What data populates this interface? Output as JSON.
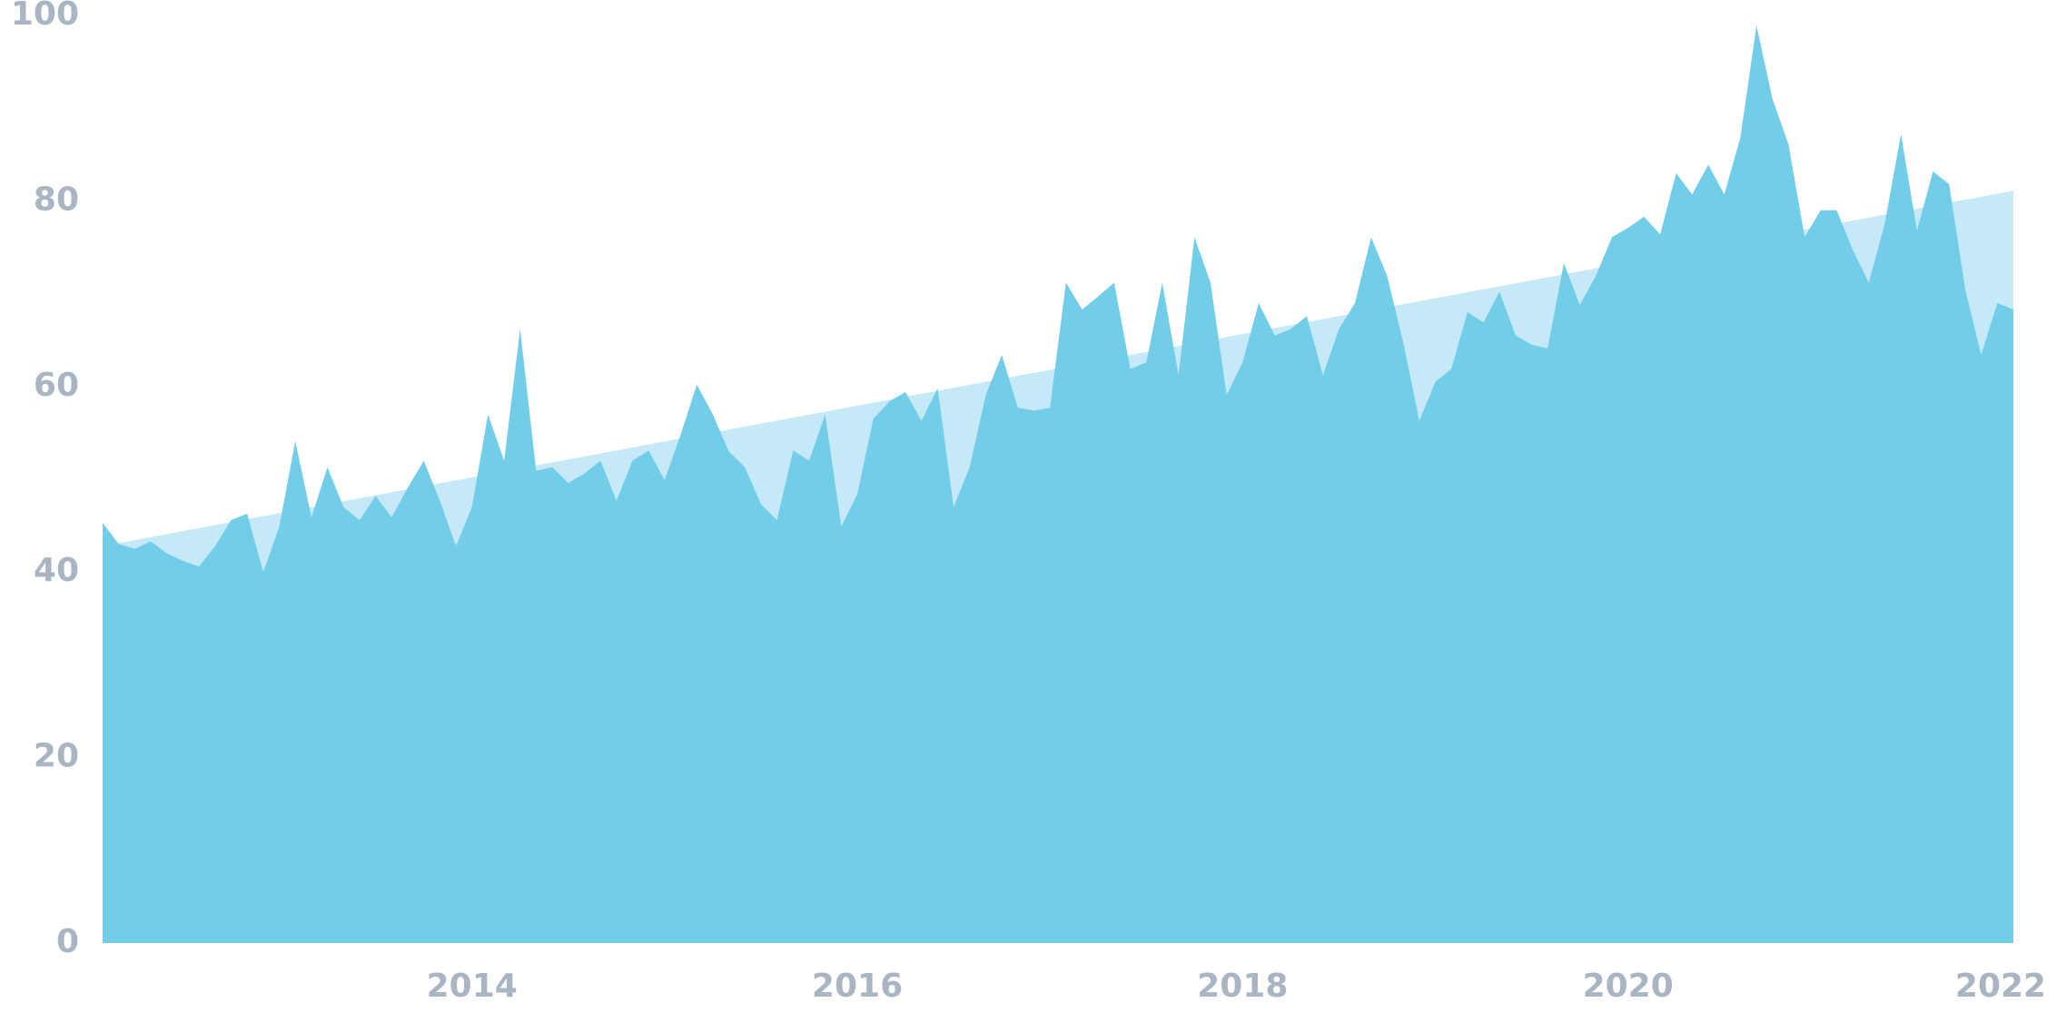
{
  "chart_data": {
    "type": "area",
    "xlim": [
      2012.083,
      2022.0
    ],
    "xticks": [
      2014,
      2016,
      2018,
      2020,
      2022
    ],
    "ylim": [
      0,
      100
    ],
    "yticks": [
      0,
      20,
      40,
      60,
      80,
      100
    ],
    "series": [
      {
        "color": "#c6e9f7",
        "x": [
          2012.083,
          2022.0
        ],
        "values": [
          42.8,
          81.1
        ]
      },
      {
        "color": "#72cde9",
        "x": [
          2012.083,
          2012.167,
          2012.25,
          2012.333,
          2012.417,
          2012.5,
          2012.583,
          2012.667,
          2012.75,
          2012.833,
          2012.917,
          2013.0,
          2013.083,
          2013.167,
          2013.25,
          2013.333,
          2013.417,
          2013.5,
          2013.583,
          2013.667,
          2013.75,
          2013.833,
          2013.917,
          2014.0,
          2014.083,
          2014.167,
          2014.25,
          2014.333,
          2014.417,
          2014.5,
          2014.583,
          2014.667,
          2014.75,
          2014.833,
          2014.917,
          2015.0,
          2015.083,
          2015.167,
          2015.25,
          2015.333,
          2015.417,
          2015.5,
          2015.583,
          2015.667,
          2015.75,
          2015.833,
          2015.917,
          2016.0,
          2016.083,
          2016.167,
          2016.25,
          2016.333,
          2016.417,
          2016.5,
          2016.583,
          2016.667,
          2016.75,
          2016.833,
          2016.917,
          2017.0,
          2017.083,
          2017.167,
          2017.25,
          2017.333,
          2017.417,
          2017.5,
          2017.583,
          2017.667,
          2017.75,
          2017.833,
          2017.917,
          2018.0,
          2018.083,
          2018.167,
          2018.25,
          2018.333,
          2018.417,
          2018.5,
          2018.583,
          2018.667,
          2018.75,
          2018.833,
          2018.917,
          2019.0,
          2019.083,
          2019.167,
          2019.25,
          2019.333,
          2019.417,
          2019.5,
          2019.583,
          2019.667,
          2019.75,
          2019.833,
          2019.917,
          2020.0,
          2020.083,
          2020.167,
          2020.25,
          2020.333,
          2020.417,
          2020.5,
          2020.583,
          2020.667,
          2020.75,
          2020.833,
          2020.917,
          2021.0,
          2021.083,
          2021.167,
          2021.25,
          2021.333,
          2021.417,
          2021.5,
          2021.583,
          2021.667,
          2021.75,
          2021.833,
          2021.917,
          2022.0
        ],
        "values": [
          45.3,
          43,
          42.5,
          43.3,
          42,
          41.2,
          40.6,
          42.8,
          45.6,
          46.3,
          40,
          44.9,
          54.1,
          45.9,
          51.3,
          47,
          45.6,
          48.2,
          45.9,
          49.1,
          52,
          47.7,
          42.8,
          47,
          57,
          52,
          66.2,
          50.9,
          51.3,
          49.6,
          50.6,
          52,
          47.7,
          52,
          53.1,
          49.9,
          54.8,
          60.2,
          57,
          53,
          51.3,
          47.3,
          45.6,
          53.1,
          52,
          57,
          44.9,
          48.4,
          56.5,
          58.4,
          59.4,
          56.3,
          59.8,
          47,
          51.3,
          59.1,
          63.4,
          57.7,
          57.4,
          57.7,
          71.2,
          68.3,
          69.7,
          71.2,
          61.9,
          62.6,
          71.2,
          61.2,
          76.1,
          71.2,
          59.1,
          62.6,
          69,
          65.5,
          66.2,
          67.6,
          61.2,
          66.2,
          69,
          76.1,
          71.9,
          64.8,
          56.3,
          60.5,
          61.9,
          68,
          66.9,
          70.2,
          65.5,
          64.5,
          64.1,
          73.3,
          68.8,
          71.9,
          76.1,
          77.1,
          78.3,
          76.4,
          83,
          80.7,
          83.9,
          80.7,
          86.8,
          98.9,
          91,
          86.1,
          76.1,
          79,
          79,
          74.7,
          71.2,
          77.6,
          87.2,
          76.8,
          83.2,
          81.8,
          70.5,
          63.4,
          69,
          68.3
        ]
      }
    ]
  }
}
